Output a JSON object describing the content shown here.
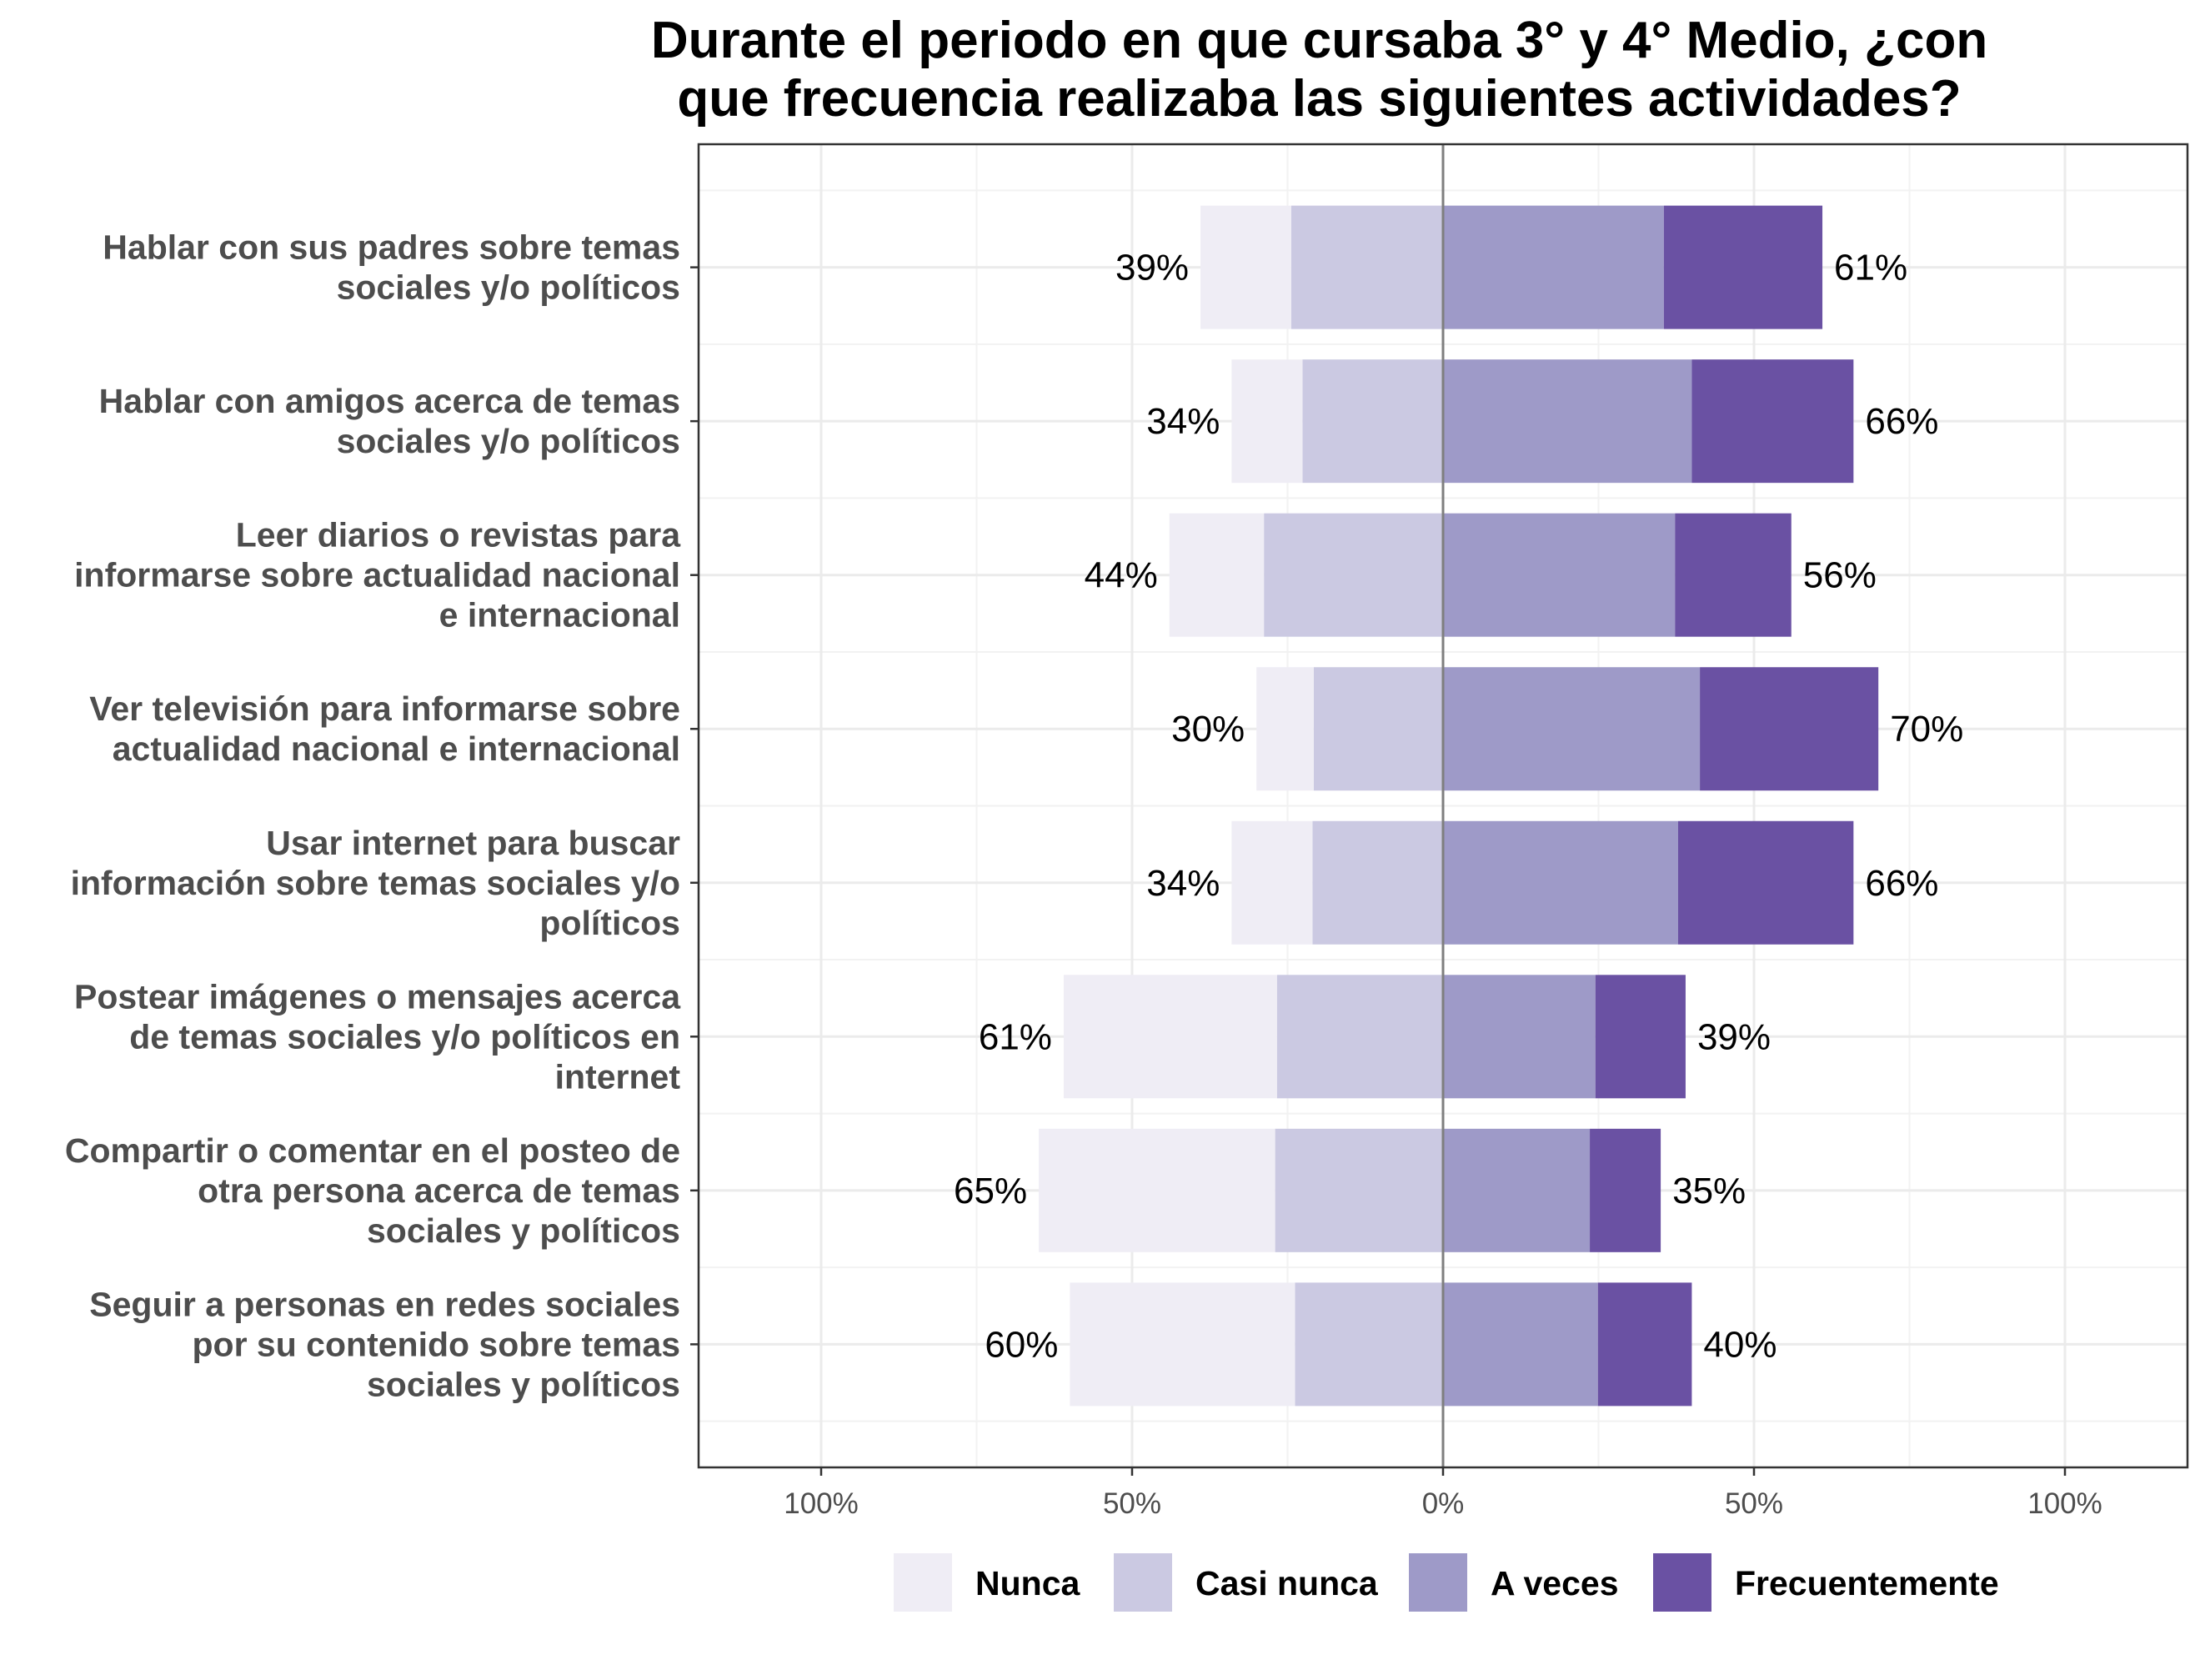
{
  "chart_data": {
    "type": "bar",
    "orientation": "horizontal-diverging",
    "title": "Durante el periodo en que cursaba 3° y 4° Medio, ¿con que frecuencia realizaba las siguientes actividades?",
    "title_lines": [
      "Durante el periodo en que cursaba 3° y 4° Medio, ¿con",
      "que frecuencia realizaba las siguientes actividades?"
    ],
    "xlim": [
      -120,
      120
    ],
    "x_ticks": [
      -100,
      -50,
      0,
      50,
      100
    ],
    "x_tick_labels": [
      "100%",
      "50%",
      "0%",
      "50%",
      "100%"
    ],
    "grid": true,
    "legend_position": "bottom",
    "categories": [
      "Hablar con sus padres sobre temas sociales y/o políticos",
      "Hablar con amigos acerca de temas sociales y/o políticos",
      "Leer diarios o revistas para informarse sobre actualidad nacional e internacional",
      "Ver televisión para informarse sobre actualidad nacional e internacional",
      "Usar internet para buscar información sobre temas sociales y/o políticos",
      "Postear imágenes o mensajes acerca de temas sociales y/o políticos en internet",
      "Compartir o comentar en el posteo de otra persona acerca de temas sociales y políticos",
      "Seguir a personas en redes sociales por su contenido sobre temas sociales y políticos"
    ],
    "category_label_lines": [
      [
        "Hablar con sus padres sobre temas",
        "sociales y/o políticos"
      ],
      [
        "Hablar con amigos acerca de temas",
        "sociales y/o políticos"
      ],
      [
        "Leer diarios o revistas para",
        "informarse sobre actualidad nacional",
        "e internacional"
      ],
      [
        "Ver televisión para informarse sobre",
        "actualidad nacional e internacional"
      ],
      [
        "Usar internet para buscar",
        "información sobre temas sociales y/o",
        "políticos"
      ],
      [
        "Postear imágenes o mensajes acerca",
        "de temas sociales y/o políticos en",
        "internet"
      ],
      [
        "Compartir o comentar en el posteo de",
        "otra persona acerca de temas",
        "sociales y políticos"
      ],
      [
        "Seguir a personas en redes sociales",
        "por su contenido sobre temas",
        "sociales y políticos"
      ]
    ],
    "series": [
      {
        "name": "Nunca",
        "color": "#efedf5",
        "side": "negative",
        "values": [
          14.6,
          11.4,
          15.2,
          9.2,
          13.0,
          34.3,
          38.0,
          36.2
        ]
      },
      {
        "name": "Casi nunca",
        "color": "#cbc9e2",
        "side": "negative",
        "values": [
          24.4,
          22.6,
          28.8,
          20.8,
          21.0,
          26.7,
          27.0,
          23.8
        ]
      },
      {
        "name": "A veces",
        "color": "#9e9ac8",
        "side": "positive",
        "values": [
          35.5,
          40.0,
          37.3,
          41.3,
          37.8,
          24.5,
          23.6,
          24.9
        ]
      },
      {
        "name": "Frecuentemente",
        "color": "#6a51a3",
        "side": "positive",
        "values": [
          25.5,
          26.0,
          18.7,
          28.7,
          28.2,
          14.5,
          11.4,
          15.1
        ]
      }
    ],
    "negative_totals_labels": [
      "39%",
      "34%",
      "44%",
      "30%",
      "34%",
      "61%",
      "65%",
      "60%"
    ],
    "positive_totals_labels": [
      "61%",
      "66%",
      "56%",
      "70%",
      "66%",
      "39%",
      "35%",
      "40%"
    ],
    "legend": [
      "Nunca",
      "Casi nunca",
      "A veces",
      "Frecuentemente"
    ]
  }
}
